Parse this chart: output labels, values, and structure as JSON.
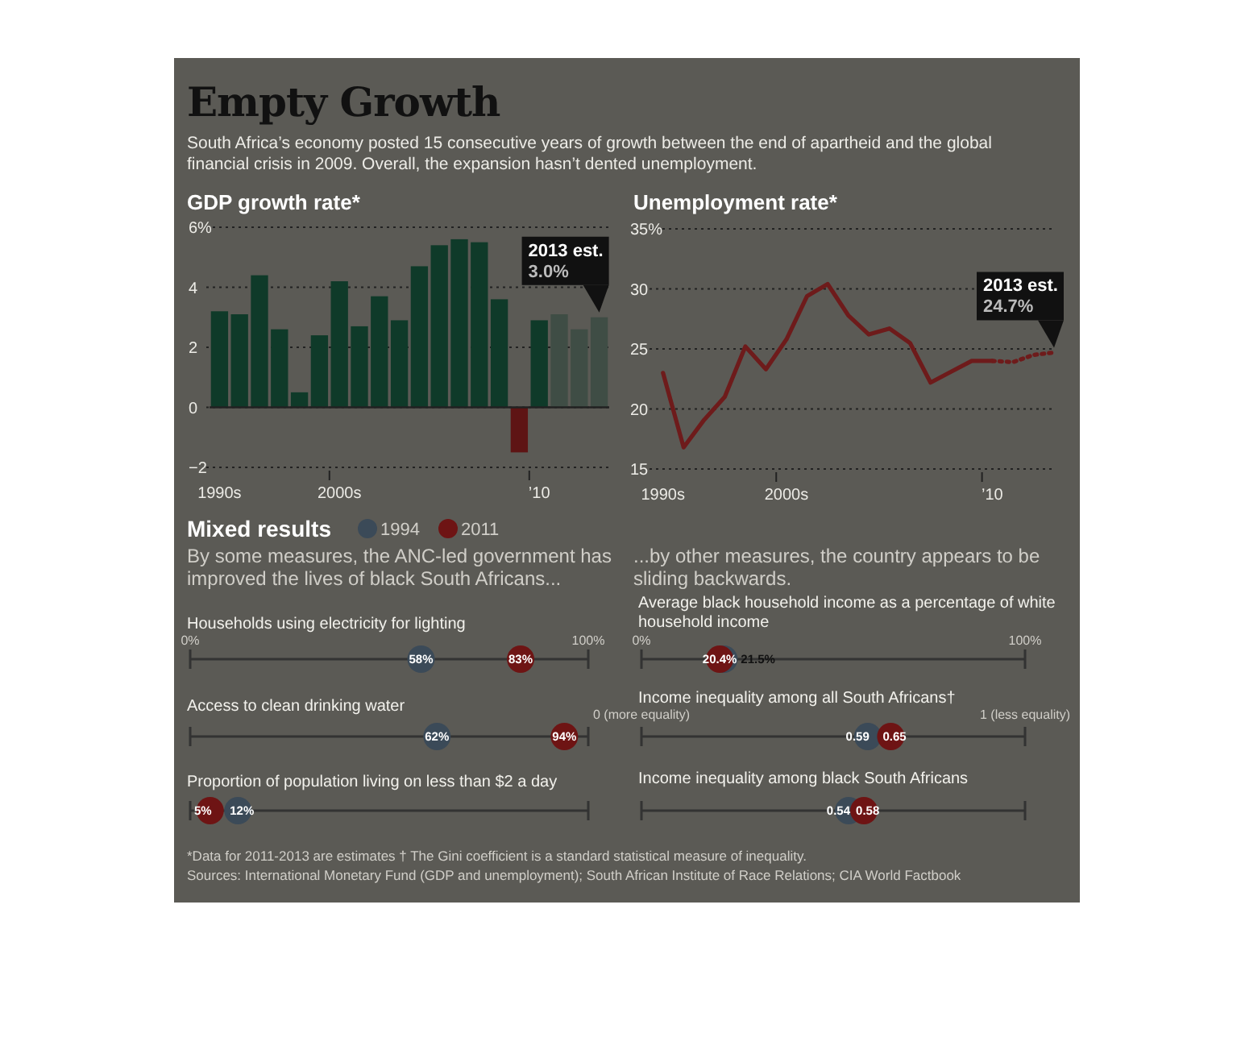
{
  "chart_data": [
    {
      "type": "other",
      "title": "Empty Growth",
      "subtitle": "South Africa’s economy posted 15 consecutive years of growth between the end of apartheid and the global financial crisis in 2009. Overall, the expansion hasn’t dented unemployment."
    },
    {
      "type": "bar",
      "title": "GDP growth rate*",
      "categories": [
        "1990s",
        null,
        null,
        null,
        null,
        null,
        "2000s",
        null,
        null,
        null,
        null,
        null,
        null,
        null,
        null,
        null,
        "’10",
        null,
        null,
        null
      ],
      "values": [
        3.2,
        3.1,
        4.4,
        2.6,
        0.5,
        2.4,
        4.2,
        2.7,
        3.7,
        2.9,
        4.7,
        5.4,
        5.6,
        5.5,
        3.6,
        -1.5,
        2.9,
        3.1,
        2.6,
        3.0
      ],
      "colors": [
        "#0f3a29",
        "#0f3a29",
        "#0f3a29",
        "#0f3a29",
        "#0f3a29",
        "#0f3a29",
        "#0f3a29",
        "#0f3a29",
        "#0f3a29",
        "#0f3a29",
        "#0f3a29",
        "#0f3a29",
        "#0f3a29",
        "#0f3a29",
        "#0f3a29",
        "#5e1414",
        "#0f3a29",
        "#3f4d45",
        "#3f4d45",
        "#3f4d45"
      ],
      "ylim": [
        -2,
        6
      ],
      "yticks": [
        {
          "value": -2,
          "label": "−2"
        },
        0,
        2,
        4,
        {
          "value": 6,
          "label": "6%"
        }
      ],
      "grid": "y",
      "annotations": [
        {
          "text": "2013 est.\n3.0%",
          "y": 3.0
        }
      ]
    },
    {
      "type": "line",
      "title": "Unemployment rate*",
      "categories": [
        "1990s",
        null,
        null,
        null,
        null,
        null,
        "2000s",
        null,
        null,
        null,
        null,
        null,
        null,
        null,
        null,
        null,
        "’10",
        null,
        null,
        null
      ],
      "series": [
        {
          "color": "#6e1b1b",
          "line_style": "solid",
          "values": [
            23.0,
            16.8,
            19.1,
            21.0,
            25.2,
            23.3,
            25.8,
            29.4,
            30.4,
            27.8,
            26.2,
            26.7,
            25.5,
            22.2,
            23.1,
            24.0,
            24.0,
            null,
            null,
            null
          ]
        },
        {
          "color": "#6e1b1b",
          "line_style": "dotted",
          "values": [
            null,
            null,
            null,
            null,
            null,
            null,
            null,
            null,
            null,
            null,
            null,
            null,
            null,
            null,
            null,
            null,
            24.0,
            23.9,
            24.5,
            24.7
          ]
        }
      ],
      "ylim": [
        15,
        35
      ],
      "yticks": [
        15,
        20,
        25,
        30,
        {
          "value": 35,
          "label": "35%"
        }
      ],
      "grid": "y",
      "annotations": [
        {
          "text": "2013 est.\n24.7%",
          "y": 24.7
        }
      ]
    },
    {
      "type": "scatter",
      "orientation": "horizontal",
      "title": "Mixed results",
      "subtitle": "By some measures, the ANC-led government has improved the lives of black South Africans...",
      "legend": "top",
      "categories": [
        "Households using electricity for lighting",
        "Access to clean drinking water",
        "Proportion of population living on less than $2 a day"
      ],
      "xlim": [
        0,
        100
      ],
      "xticks": [
        {
          "value": 0,
          "label": "0%"
        },
        {
          "value": 100,
          "label": "100%"
        }
      ],
      "series": [
        {
          "name": "1994",
          "color": "#3b4a58",
          "values": [
            58,
            62,
            12
          ],
          "value_labels": [
            "58%",
            "62%",
            "12%"
          ]
        },
        {
          "name": "2011",
          "color": "#6e1414",
          "values": [
            83,
            94,
            5
          ],
          "value_labels": [
            "83%",
            "94%",
            "5%"
          ]
        }
      ]
    },
    {
      "type": "scatter",
      "orientation": "horizontal",
      "subtitle": "...by other measures, the country appears to be sliding backwards.",
      "categories": [
        "Average black household income as a percentage of white household income"
      ],
      "xlim": [
        0,
        100
      ],
      "xticks": [
        {
          "value": 0,
          "label": "0%"
        },
        {
          "value": 100,
          "label": "100%"
        }
      ],
      "series": [
        {
          "color": "#3b4a58",
          "values": [
            21.5
          ],
          "value_labels": [
            "21.5%"
          ]
        },
        {
          "color": "#6e1414",
          "values": [
            20.4
          ],
          "value_labels": [
            "20.4%"
          ]
        }
      ]
    },
    {
      "type": "scatter",
      "orientation": "horizontal",
      "data_labels": true,
      "categories": [
        "Income inequality among all South Africans†",
        "Income inequality among black South Africans"
      ],
      "xlim": [
        0,
        1
      ],
      "xticks": [
        {
          "value": 0,
          "label": "0 (more equality)"
        },
        {
          "value": 1,
          "label": "1 (less equality)"
        }
      ],
      "series": [
        {
          "color": "#3b4a58",
          "values": [
            0.59,
            0.54
          ]
        },
        {
          "color": "#6e1414",
          "values": [
            0.65,
            0.58
          ]
        }
      ]
    },
    {
      "type": "other",
      "annotations": [
        "*Data for 2011-2013 are estimates  † The Gini coefficient is a standard statistical measure of inequality.",
        "Sources: International Monetary Fund (GDP and unemployment); South African Institute of Race Relations; CIA World Factbook"
      ]
    }
  ]
}
